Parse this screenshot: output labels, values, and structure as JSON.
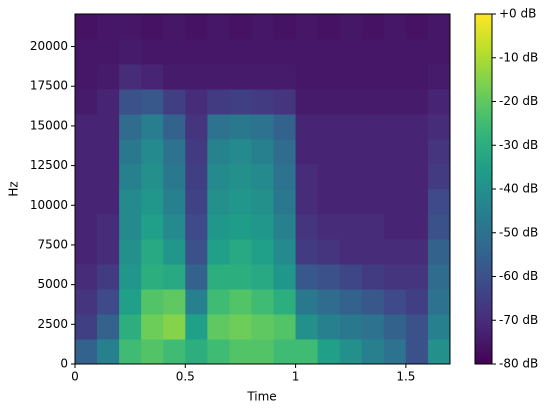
{
  "chart_data": {
    "type": "heatmap",
    "x_label": "Time",
    "y_label": "Hz",
    "xlim": [
      0,
      1.7
    ],
    "ylim": [
      0,
      22050
    ],
    "xticks": [
      0,
      0.5,
      1,
      1.5
    ],
    "yticks": [
      0,
      2500,
      5000,
      7500,
      10000,
      12500,
      15000,
      17500,
      20000
    ],
    "xbins": [
      0,
      0.1,
      0.2,
      0.3,
      0.4,
      0.5,
      0.6,
      0.7,
      0.8,
      0.9,
      1.0,
      1.1,
      1.2,
      1.3,
      1.4,
      1.5,
      1.6,
      1.7
    ],
    "ybins": [
      0,
      1575,
      3150,
      4725,
      6300,
      7875,
      9450,
      11025,
      12600,
      14175,
      15750,
      17325,
      18900,
      20475,
      22050
    ],
    "colormap": "viridis",
    "clim": [
      -80,
      0
    ],
    "colorbar_ticks": [
      {
        "value": 0,
        "label": "+0 dB"
      },
      {
        "value": -10,
        "label": "-10 dB"
      },
      {
        "value": -20,
        "label": "-20 dB"
      },
      {
        "value": -30,
        "label": "-30 dB"
      },
      {
        "value": -40,
        "label": "-40 dB"
      },
      {
        "value": -50,
        "label": "-50 dB"
      },
      {
        "value": -60,
        "label": "-60 dB"
      },
      {
        "value": -70,
        "label": "-70 dB"
      },
      {
        "value": -80,
        "label": "-80 dB"
      }
    ],
    "values": [
      [
        -55,
        -45,
        -25,
        -22,
        -25,
        -30,
        -25,
        -22,
        -22,
        -25,
        -25,
        -35,
        -40,
        -45,
        -50,
        -60,
        -40
      ],
      [
        -65,
        -55,
        -30,
        -18,
        -15,
        -35,
        -20,
        -18,
        -20,
        -22,
        -40,
        -45,
        -48,
        -50,
        -55,
        -60,
        -45
      ],
      [
        -68,
        -62,
        -35,
        -22,
        -20,
        -45,
        -25,
        -22,
        -25,
        -30,
        -48,
        -52,
        -55,
        -58,
        -62,
        -65,
        -50
      ],
      [
        -70,
        -66,
        -38,
        -30,
        -32,
        -55,
        -30,
        -30,
        -32,
        -38,
        -58,
        -60,
        -63,
        -66,
        -68,
        -68,
        -52
      ],
      [
        -72,
        -70,
        -40,
        -32,
        -38,
        -60,
        -35,
        -32,
        -35,
        -42,
        -66,
        -68,
        -70,
        -70,
        -70,
        -70,
        -55
      ],
      [
        -72,
        -70,
        -42,
        -35,
        -42,
        -62,
        -38,
        -36,
        -38,
        -45,
        -68,
        -70,
        -70,
        -70,
        -72,
        -72,
        -60
      ],
      [
        -72,
        -72,
        -42,
        -38,
        -45,
        -64,
        -40,
        -38,
        -40,
        -48,
        -70,
        -72,
        -72,
        -72,
        -72,
        -72,
        -62
      ],
      [
        -72,
        -72,
        -45,
        -40,
        -48,
        -65,
        -42,
        -40,
        -42,
        -50,
        -70,
        -72,
        -72,
        -72,
        -72,
        -72,
        -66
      ],
      [
        -72,
        -72,
        -48,
        -42,
        -50,
        -66,
        -44,
        -42,
        -45,
        -52,
        -72,
        -72,
        -72,
        -72,
        -72,
        -72,
        -68
      ],
      [
        -72,
        -72,
        -52,
        -46,
        -55,
        -68,
        -50,
        -48,
        -50,
        -55,
        -72,
        -72,
        -72,
        -72,
        -72,
        -72,
        -70
      ],
      [
        -74,
        -72,
        -60,
        -58,
        -65,
        -70,
        -66,
        -65,
        -66,
        -68,
        -74,
        -74,
        -74,
        -74,
        -74,
        -74,
        -72
      ],
      [
        -75,
        -74,
        -70,
        -72,
        -74,
        -74,
        -74,
        -74,
        -74,
        -74,
        -75,
        -75,
        -75,
        -75,
        -75,
        -75,
        -74
      ],
      [
        -75,
        -75,
        -74,
        -75,
        -75,
        -75,
        -75,
        -75,
        -75,
        -75,
        -75,
        -75,
        -75,
        -75,
        -75,
        -75,
        -75
      ],
      [
        -76,
        -75,
        -75,
        -76,
        -75,
        -76,
        -75,
        -76,
        -75,
        -76,
        -75,
        -76,
        -75,
        -76,
        -75,
        -76,
        -75
      ]
    ]
  }
}
